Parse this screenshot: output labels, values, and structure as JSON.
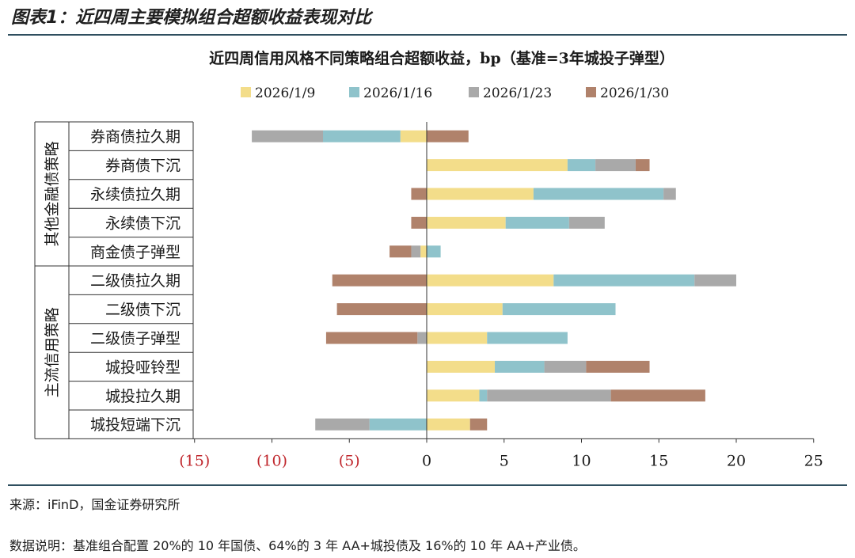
{
  "header": {
    "title": "图表1：近四周主要模拟组合超额收益表现对比"
  },
  "footer": {
    "source": "来源：iFinD，国金证券研究所",
    "note": "数据说明：基准组合配置 20%的 10 年国债、64%的 3 年 AA+城投债及 16%的 10 年 AA+产业债。"
  },
  "colors": {
    "header_rule": "#2f4f5f",
    "negative_tick": "#c0272d",
    "axis": "#333333"
  },
  "chart_data": {
    "type": "bar",
    "orientation": "horizontal",
    "stacked": true,
    "title": "近四周信用风格不同策略组合超额收益，bp（基准=3年城投子弹型）",
    "xlabel": "",
    "ylabel": "",
    "xlim": [
      -15,
      25
    ],
    "xticks": [
      -15,
      -10,
      -5,
      0,
      5,
      10,
      15,
      20,
      25
    ],
    "xtick_labels": [
      "(15)",
      "(10)",
      "(5)",
      "0",
      "5",
      "10",
      "15",
      "20",
      "25"
    ],
    "legend_position": "top",
    "categories": [
      "券商债拉久期",
      "券商债下沉",
      "永续债拉久期",
      "永续债下沉",
      "商金债子弹型",
      "二级债拉久期",
      "二级债下沉",
      "二级债子弹型",
      "城投哑铃型",
      "城投拉久期",
      "城投短端下沉"
    ],
    "groups": [
      {
        "label": "其他金融债策略",
        "count": 5
      },
      {
        "label": "主流信用策略",
        "count": 6
      }
    ],
    "series": [
      {
        "name": "2026/1/9",
        "color": "#f3dd8a",
        "values": [
          -1.7,
          9.1,
          6.9,
          5.1,
          -0.4,
          8.2,
          4.9,
          3.9,
          4.4,
          3.4,
          2.8
        ]
      },
      {
        "name": "2026/1/16",
        "color": "#8fc3cb",
        "values": [
          -5.0,
          1.8,
          8.4,
          4.1,
          0.9,
          9.1,
          7.3,
          5.2,
          3.2,
          0.5,
          -3.7
        ]
      },
      {
        "name": "2026/1/23",
        "color": "#a9a9a9",
        "values": [
          -4.6,
          2.6,
          0.8,
          2.3,
          -0.6,
          2.7,
          0.0,
          -0.6,
          2.7,
          8.0,
          -3.5
        ]
      },
      {
        "name": "2026/1/30",
        "color": "#b0826b",
        "values": [
          2.7,
          0.9,
          -1.0,
          -1.0,
          -1.4,
          -6.1,
          -5.8,
          -5.9,
          4.1,
          6.1,
          1.1
        ]
      }
    ]
  }
}
